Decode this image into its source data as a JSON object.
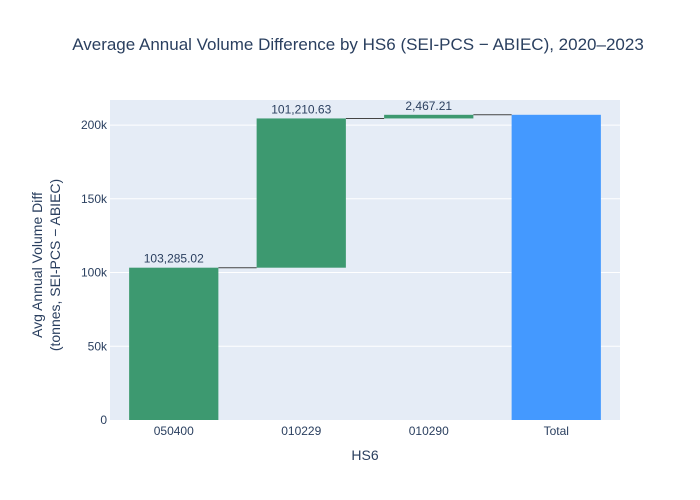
{
  "chart_data": {
    "type": "bar",
    "subtype": "waterfall",
    "title": "Average Annual Volume Difference by HS6 (SEI-PCS − ABIEC), 2020–2023",
    "xlabel": "HS6",
    "ylabel_line1": "Avg Annual Volume Diff",
    "ylabel_line2": "(tonnes, SEI-PCS − ABIEC)",
    "categories": [
      "050400",
      "010229",
      "010290",
      "Total"
    ],
    "values": [
      103285.02,
      101210.63,
      2467.21,
      206962.86
    ],
    "measures": [
      "relative",
      "relative",
      "relative",
      "total"
    ],
    "data_labels": [
      "103,285.02",
      "101,210.63",
      "2,467.21",
      ""
    ],
    "ylim": [
      0,
      217000
    ],
    "y_ticks": [
      0,
      50000,
      100000,
      150000,
      200000
    ],
    "y_tick_labels": [
      "0",
      "50k",
      "100k",
      "150k",
      "200k"
    ],
    "grid": true,
    "colors": {
      "increase": "#3d9970",
      "total": "#4499ff",
      "connector": "#444444",
      "plot_bg": "#e5ecf6",
      "grid": "#ffffff",
      "text": "#2a3f5f"
    }
  }
}
